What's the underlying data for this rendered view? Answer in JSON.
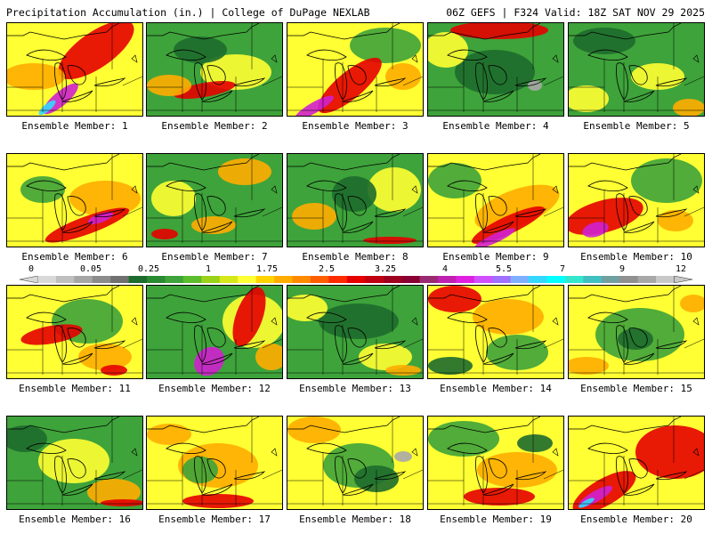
{
  "header": {
    "title_left": "Precipitation Accumulation (in.) | College of DuPage NEXLAB",
    "title_right": "06Z GEFS | F324 Valid: 18Z SAT NOV 29 2025"
  },
  "colorbar": {
    "tick_labels": [
      "0",
      "0.05",
      "0.25",
      "1",
      "1.75",
      "2.5",
      "3.25",
      "4",
      "5.5",
      "7",
      "9",
      "12"
    ],
    "colors": [
      "#d9d9d9",
      "#bfbfbf",
      "#a6a6a6",
      "#8c8c8c",
      "#707070",
      "#1e6b2e",
      "#2a8a32",
      "#3ea33a",
      "#5cbd2c",
      "#9ad119",
      "#d6e81a",
      "#ffff33",
      "#ffd300",
      "#ffad00",
      "#ff8a00",
      "#ff5e00",
      "#ff2a00",
      "#e60000",
      "#c00010",
      "#a00020",
      "#8a0030",
      "#9a2a72",
      "#c020b0",
      "#e020e0",
      "#d050ff",
      "#a070ff",
      "#7fb0ff",
      "#33d8ff",
      "#00ffff",
      "#33e6cc",
      "#40c0c0",
      "#70a0a0",
      "#909090",
      "#a8a8a8",
      "#c8c8c8"
    ]
  },
  "members": [
    {
      "caption": "Ensemble Member: 1",
      "base": "yellow",
      "blobs": [
        [
          "red",
          100,
          30,
          50,
          20,
          -35
        ],
        [
          "magenta",
          60,
          85,
          25,
          8,
          -40
        ],
        [
          "cyan",
          45,
          95,
          12,
          4,
          -40
        ],
        [
          "orange",
          30,
          60,
          35,
          15,
          0
        ]
      ]
    },
    {
      "caption": "Ensemble Member: 2",
      "base": "green",
      "blobs": [
        [
          "yellow",
          100,
          55,
          40,
          20,
          0
        ],
        [
          "red",
          65,
          75,
          35,
          8,
          -10
        ],
        [
          "orange",
          25,
          70,
          25,
          12,
          0
        ],
        [
          "darkgreen",
          60,
          30,
          30,
          15,
          0
        ]
      ]
    },
    {
      "caption": "Ensemble Member: 3",
      "base": "yellow",
      "blobs": [
        [
          "green",
          110,
          25,
          40,
          20,
          0
        ],
        [
          "red",
          70,
          70,
          45,
          15,
          -40
        ],
        [
          "magenta",
          30,
          95,
          25,
          6,
          -30
        ],
        [
          "orange",
          130,
          60,
          20,
          15,
          0
        ]
      ]
    },
    {
      "caption": "Ensemble Member: 4",
      "base": "green",
      "blobs": [
        [
          "red",
          80,
          8,
          55,
          10,
          0
        ],
        [
          "darkgreen",
          75,
          55,
          45,
          25,
          0
        ],
        [
          "yellow",
          20,
          30,
          25,
          20,
          0
        ],
        [
          "grey",
          120,
          70,
          8,
          6,
          0
        ]
      ]
    },
    {
      "caption": "Ensemble Member: 5",
      "base": "green",
      "blobs": [
        [
          "darkgreen",
          40,
          20,
          35,
          15,
          0
        ],
        [
          "yellow",
          100,
          60,
          30,
          15,
          0
        ],
        [
          "yellow",
          20,
          85,
          25,
          15,
          0
        ],
        [
          "orange",
          135,
          95,
          18,
          10,
          0
        ]
      ]
    },
    {
      "caption": "Ensemble Member: 6",
      "base": "yellow",
      "blobs": [
        [
          "orange",
          110,
          50,
          40,
          20,
          0
        ],
        [
          "red",
          90,
          80,
          50,
          10,
          -20
        ],
        [
          "magenta",
          105,
          72,
          15,
          5,
          -20
        ],
        [
          "green",
          40,
          40,
          25,
          15,
          0
        ]
      ]
    },
    {
      "caption": "Ensemble Member: 7",
      "base": "green",
      "blobs": [
        [
          "yellow",
          30,
          50,
          25,
          20,
          0
        ],
        [
          "orange",
          110,
          20,
          30,
          15,
          0
        ],
        [
          "red",
          20,
          90,
          15,
          6,
          0
        ],
        [
          "orange",
          75,
          80,
          25,
          10,
          0
        ]
      ]
    },
    {
      "caption": "Ensemble Member: 8",
      "base": "green",
      "blobs": [
        [
          "yellow",
          120,
          40,
          30,
          25,
          0
        ],
        [
          "orange",
          30,
          70,
          25,
          15,
          0
        ],
        [
          "red",
          115,
          97,
          30,
          4,
          0
        ],
        [
          "darkgreen",
          75,
          45,
          25,
          20,
          0
        ]
      ]
    },
    {
      "caption": "Ensemble Member: 9",
      "base": "yellow",
      "blobs": [
        [
          "orange",
          100,
          60,
          50,
          20,
          -20
        ],
        [
          "red",
          90,
          80,
          45,
          10,
          -25
        ],
        [
          "magenta",
          75,
          95,
          25,
          5,
          -25
        ],
        [
          "green",
          30,
          30,
          30,
          20,
          0
        ]
      ]
    },
    {
      "caption": "Ensemble Member: 10",
      "base": "yellow",
      "blobs": [
        [
          "green",
          110,
          30,
          40,
          25,
          0
        ],
        [
          "red",
          40,
          70,
          45,
          18,
          -15
        ],
        [
          "magenta",
          30,
          85,
          15,
          8,
          -15
        ],
        [
          "orange",
          120,
          75,
          20,
          12,
          0
        ]
      ]
    },
    {
      "caption": "Ensemble Member: 11",
      "base": "yellow",
      "blobs": [
        [
          "green",
          90,
          40,
          40,
          25,
          0
        ],
        [
          "red",
          50,
          55,
          35,
          10,
          -10
        ],
        [
          "orange",
          110,
          80,
          30,
          15,
          0
        ],
        [
          "red",
          120,
          95,
          15,
          6,
          0
        ]
      ]
    },
    {
      "caption": "Ensemble Member: 12",
      "base": "green",
      "blobs": [
        [
          "yellow",
          120,
          40,
          35,
          30,
          0
        ],
        [
          "red",
          115,
          35,
          15,
          35,
          20
        ],
        [
          "magenta",
          70,
          85,
          18,
          15,
          -40
        ],
        [
          "orange",
          140,
          80,
          18,
          15,
          0
        ]
      ]
    },
    {
      "caption": "Ensemble Member: 13",
      "base": "green",
      "blobs": [
        [
          "darkgreen",
          80,
          40,
          45,
          20,
          0
        ],
        [
          "yellow",
          20,
          25,
          25,
          15,
          0
        ],
        [
          "yellow",
          110,
          80,
          30,
          15,
          0
        ],
        [
          "orange",
          130,
          95,
          20,
          6,
          0
        ]
      ]
    },
    {
      "caption": "Ensemble Member: 14",
      "base": "yellow",
      "blobs": [
        [
          "red",
          30,
          15,
          30,
          15,
          0
        ],
        [
          "orange",
          90,
          35,
          40,
          20,
          0
        ],
        [
          "green",
          100,
          75,
          35,
          20,
          0
        ],
        [
          "darkgreen",
          25,
          90,
          25,
          10,
          0
        ]
      ]
    },
    {
      "caption": "Ensemble Member: 15",
      "base": "yellow",
      "blobs": [
        [
          "green",
          80,
          55,
          50,
          30,
          0
        ],
        [
          "darkgreen",
          75,
          60,
          20,
          12,
          0
        ],
        [
          "orange",
          20,
          90,
          25,
          10,
          0
        ],
        [
          "orange",
          140,
          20,
          15,
          10,
          0
        ]
      ]
    },
    {
      "caption": "Ensemble Member: 16",
      "base": "green",
      "blobs": [
        [
          "yellow",
          75,
          50,
          40,
          25,
          0
        ],
        [
          "orange",
          120,
          85,
          30,
          15,
          0
        ],
        [
          "darkgreen",
          20,
          25,
          25,
          15,
          0
        ],
        [
          "red",
          130,
          97,
          25,
          4,
          0
        ]
      ]
    },
    {
      "caption": "Ensemble Member: 17",
      "base": "yellow",
      "blobs": [
        [
          "orange",
          80,
          55,
          45,
          25,
          0
        ],
        [
          "green",
          60,
          60,
          20,
          15,
          0
        ],
        [
          "red",
          80,
          95,
          40,
          8,
          0
        ],
        [
          "orange",
          25,
          20,
          25,
          12,
          0
        ]
      ]
    },
    {
      "caption": "Ensemble Member: 18",
      "base": "yellow",
      "blobs": [
        [
          "orange",
          30,
          15,
          30,
          15,
          0
        ],
        [
          "green",
          80,
          55,
          40,
          25,
          0
        ],
        [
          "darkgreen",
          100,
          70,
          25,
          15,
          0
        ],
        [
          "grey",
          130,
          45,
          10,
          6,
          0
        ]
      ]
    },
    {
      "caption": "Ensemble Member: 19",
      "base": "yellow",
      "blobs": [
        [
          "green",
          40,
          25,
          40,
          20,
          0
        ],
        [
          "orange",
          100,
          60,
          45,
          20,
          0
        ],
        [
          "red",
          80,
          90,
          40,
          10,
          0
        ],
        [
          "darkgreen",
          120,
          30,
          20,
          10,
          0
        ]
      ]
    },
    {
      "caption": "Ensemble Member: 20",
      "base": "yellow",
      "blobs": [
        [
          "red",
          120,
          40,
          45,
          30,
          0
        ],
        [
          "red",
          40,
          85,
          40,
          15,
          -30
        ],
        [
          "magenta",
          30,
          90,
          22,
          6,
          -30
        ],
        [
          "cyan",
          20,
          97,
          10,
          3,
          -30
        ]
      ]
    }
  ]
}
